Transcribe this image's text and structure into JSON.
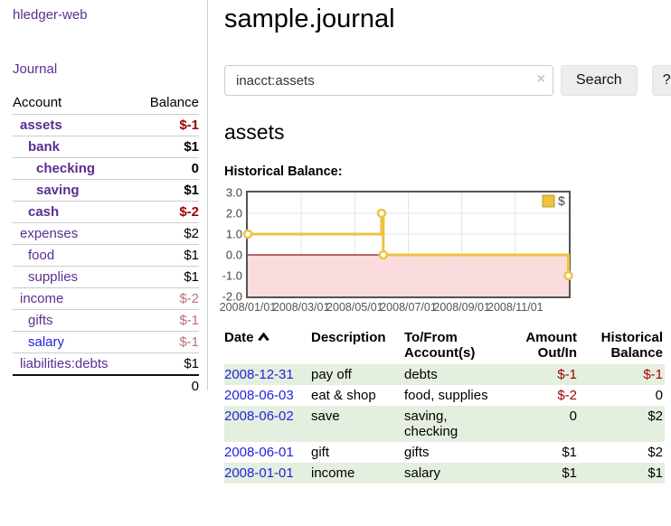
{
  "palette": {
    "link_purple": "#5c2d91",
    "link_blue": "#2222dd",
    "negative_strong": "#9e0000",
    "negative_soft": "#b97272",
    "row_stripe_green": "#e4efdf",
    "series_yellow": "#edc240",
    "negative_region_pink": "#fadcdc",
    "zero_line_red": "#8b1414",
    "chart_border_gray": "#545454"
  },
  "sidebar": {
    "brand": "hledger-web",
    "journal_link": "Journal",
    "accounts_table": {
      "headers": {
        "account": "Account",
        "balance": "Balance"
      },
      "rows": [
        {
          "name": "assets",
          "depth": 1,
          "bold": true,
          "link": "purple",
          "balance": "$-1",
          "balance_style": "neg-strong"
        },
        {
          "name": "bank",
          "depth": 2,
          "bold": true,
          "link": "purple",
          "balance": "$1",
          "balance_style": "normal"
        },
        {
          "name": "checking",
          "depth": 3,
          "bold": true,
          "link": "purple",
          "balance": "0",
          "balance_style": "normal"
        },
        {
          "name": "saving",
          "depth": 3,
          "bold": true,
          "link": "purple",
          "balance": "$1",
          "balance_style": "normal"
        },
        {
          "name": "cash",
          "depth": 2,
          "bold": true,
          "link": "purple",
          "balance": "$-2",
          "balance_style": "neg-strong"
        },
        {
          "name": "expenses",
          "depth": 1,
          "bold": false,
          "link": "purple",
          "balance": "$2",
          "balance_style": "normal"
        },
        {
          "name": "food",
          "depth": 2,
          "bold": false,
          "link": "purple",
          "balance": "$1",
          "balance_style": "normal"
        },
        {
          "name": "supplies",
          "depth": 2,
          "bold": false,
          "link": "purple",
          "balance": "$1",
          "balance_style": "normal"
        },
        {
          "name": "income",
          "depth": 1,
          "bold": false,
          "link": "purple",
          "balance": "$-2",
          "balance_style": "neg-soft"
        },
        {
          "name": "gifts",
          "depth": 2,
          "bold": false,
          "link": "purple",
          "balance": "$-1",
          "balance_style": "neg-soft"
        },
        {
          "name": "salary",
          "depth": 2,
          "bold": false,
          "link": "blue",
          "balance": "$-1",
          "balance_style": "neg-soft"
        },
        {
          "name": "liabilities:debts",
          "depth": 1,
          "bold": false,
          "link": "purple",
          "balance": "$1",
          "balance_style": "normal"
        }
      ],
      "total": "0"
    }
  },
  "main": {
    "title": "sample.journal",
    "search": {
      "value": "inacct:assets",
      "clear_icon": "×",
      "search_label": "Search",
      "help_label": "?"
    },
    "account_heading": "assets",
    "chart_heading": "Historical Balance:",
    "register": {
      "headers": {
        "date": "Date",
        "description": "Description",
        "tofrom": "To/From Account(s)",
        "amount": "Amount Out/In",
        "balance": "Historical Balance"
      },
      "rows": [
        {
          "date": "2008-12-31",
          "description": "pay off",
          "tofrom": "debts",
          "amount": "$-1",
          "amount_neg": true,
          "balance": "$-1",
          "balance_neg": true,
          "stripe": true
        },
        {
          "date": "2008-06-03",
          "description": "eat & shop",
          "tofrom": "food, supplies",
          "amount": "$-2",
          "amount_neg": true,
          "balance": "0",
          "balance_neg": false,
          "stripe": false
        },
        {
          "date": "2008-06-02",
          "description": "save",
          "tofrom": "saving, checking",
          "amount": "0",
          "amount_neg": false,
          "balance": "$2",
          "balance_neg": false,
          "stripe": true
        },
        {
          "date": "2008-06-01",
          "description": "gift",
          "tofrom": "gifts",
          "amount": "$1",
          "amount_neg": false,
          "balance": "$2",
          "balance_neg": false,
          "stripe": false
        },
        {
          "date": "2008-01-01",
          "description": "income",
          "tofrom": "salary",
          "amount": "$1",
          "amount_neg": false,
          "balance": "$1",
          "balance_neg": false,
          "stripe": true
        }
      ]
    }
  },
  "chart_data": {
    "type": "line",
    "subtype": "step",
    "title": "Historical Balance:",
    "series": [
      {
        "name": "$",
        "color": "#edc240",
        "points": [
          {
            "x": "2008-01-01",
            "y": 1
          },
          {
            "x": "2008-06-01",
            "y": 2
          },
          {
            "x": "2008-06-03",
            "y": 0
          },
          {
            "x": "2008-12-31",
            "y": -1
          }
        ]
      }
    ],
    "ylim": [
      -2.0,
      3.0
    ],
    "yticks": [
      "3.0",
      "2.0",
      "1.0",
      "0.0",
      "-1.0",
      "-2.0"
    ],
    "xticks": [
      "2008/01/01",
      "2008/03/01",
      "2008/05/01",
      "2008/07/01",
      "2008/09/01",
      "2008/11/01"
    ],
    "xtick_month_offsets": [
      0,
      2,
      4,
      6,
      8,
      10
    ],
    "grid": true,
    "legend_position": "top-right",
    "negative_region_shaded": true
  }
}
